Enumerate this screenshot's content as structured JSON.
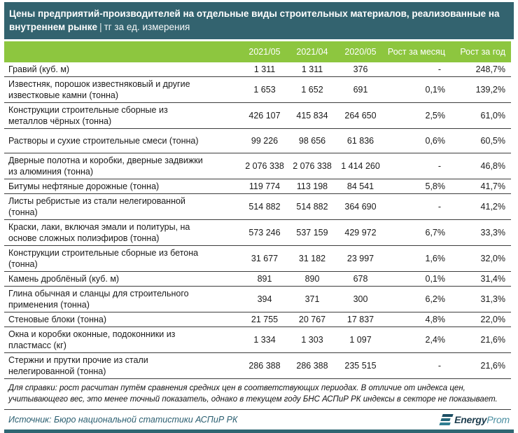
{
  "header": {
    "title": "Цены предприятий-производителей на отдельные виды строительных материалов, реализованные на внутреннем рынке",
    "separator": "|",
    "unit": "тг за ед. измерения"
  },
  "chart_data": {
    "type": "table",
    "title": "Цены предприятий-производителей на отдельные виды строительных материалов, реализованные на внутреннем рынке",
    "unit": "тг за ед. измерения",
    "columns": [
      "2021/05",
      "2021/04",
      "2020/05",
      "Рост за месяц",
      "Рост за год"
    ],
    "rows": [
      {
        "name": "Гравий (куб. м)",
        "values": [
          "1 311",
          "1 311",
          "376",
          "-",
          "248,7%"
        ]
      },
      {
        "name": "Известняк, порошок известняковый и другие известковые камни (тонна)",
        "values": [
          "1 653",
          "1 652",
          "691",
          "0,1%",
          "139,2%"
        ]
      },
      {
        "name": "Конструкции строительные сборные из металлов чёрных (тонна)",
        "values": [
          "426 107",
          "415 834",
          "264 650",
          "2,5%",
          "61,0%"
        ]
      },
      {
        "name": "Растворы и сухие строительные смеси (тонна)",
        "values": [
          "99 226",
          "98 656",
          "61 836",
          "0,6%",
          "60,5%"
        ]
      },
      {
        "name": "Дверные полотна и коробки, дверные задвижки из алюминия (тонна)",
        "values": [
          "2 076 338",
          "2 076 338",
          "1 414 260",
          "-",
          "46,8%"
        ]
      },
      {
        "name": "Битумы нефтяные дорожные (тонна)",
        "values": [
          "119 774",
          "113 198",
          "84 541",
          "5,8%",
          "41,7%"
        ]
      },
      {
        "name": "Листы ребристые из стали нелегированной (тонна)",
        "values": [
          "514 882",
          "514 882",
          "364 690",
          "-",
          "41,2%"
        ]
      },
      {
        "name": "Краски, лаки, включая эмали и политуры, на основе сложных полиэфиров (тонна)",
        "values": [
          "573 246",
          "537 159",
          "429 972",
          "6,7%",
          "33,3%"
        ]
      },
      {
        "name": "Конструкции строительные сборные из бетона (тонна)",
        "values": [
          "31 677",
          "31 182",
          "23 997",
          "1,6%",
          "32,0%"
        ]
      },
      {
        "name": "Камень дроблёный (куб. м)",
        "values": [
          "891",
          "890",
          "678",
          "0,1%",
          "31,4%"
        ]
      },
      {
        "name": "Глина обычная и сланцы для строительного применения (тонна)",
        "values": [
          "394",
          "371",
          "300",
          "6,2%",
          "31,3%"
        ]
      },
      {
        "name": "Стеновые блоки (тонна)",
        "values": [
          "21 755",
          "20 767",
          "17 837",
          "4,8%",
          "22,0%"
        ]
      },
      {
        "name": "Окна и коробки оконные, подоконники из пластмасс (кг)",
        "values": [
          "1 334",
          "1 303",
          "1 097",
          "2,4%",
          "21,6%"
        ]
      },
      {
        "name": "Стержни и прутки прочие из стали нелегированной (тонна)",
        "values": [
          "286 388",
          "286 388",
          "235 515",
          "-",
          "21,6%"
        ]
      }
    ]
  },
  "footnote": "Для справки: рост расчитан путём сравнения средних цен в соответствующих периодах. В отличие от индекса цен, учитывающего вес, это менее точный показатель, однако в текущем году БНС АСПиР РК индексы в секторе не показывает.",
  "source": "Источник: Бюро национальной статистики АСПиР РК",
  "logo": {
    "energy": "Energy",
    "prom": "Prom"
  },
  "colors": {
    "header_teal": "#33636F",
    "header_green": "#8DC63F",
    "bottom_bar": "#2F6672",
    "row_border": "#3D3D3D",
    "source_text": "#2A5E70"
  }
}
